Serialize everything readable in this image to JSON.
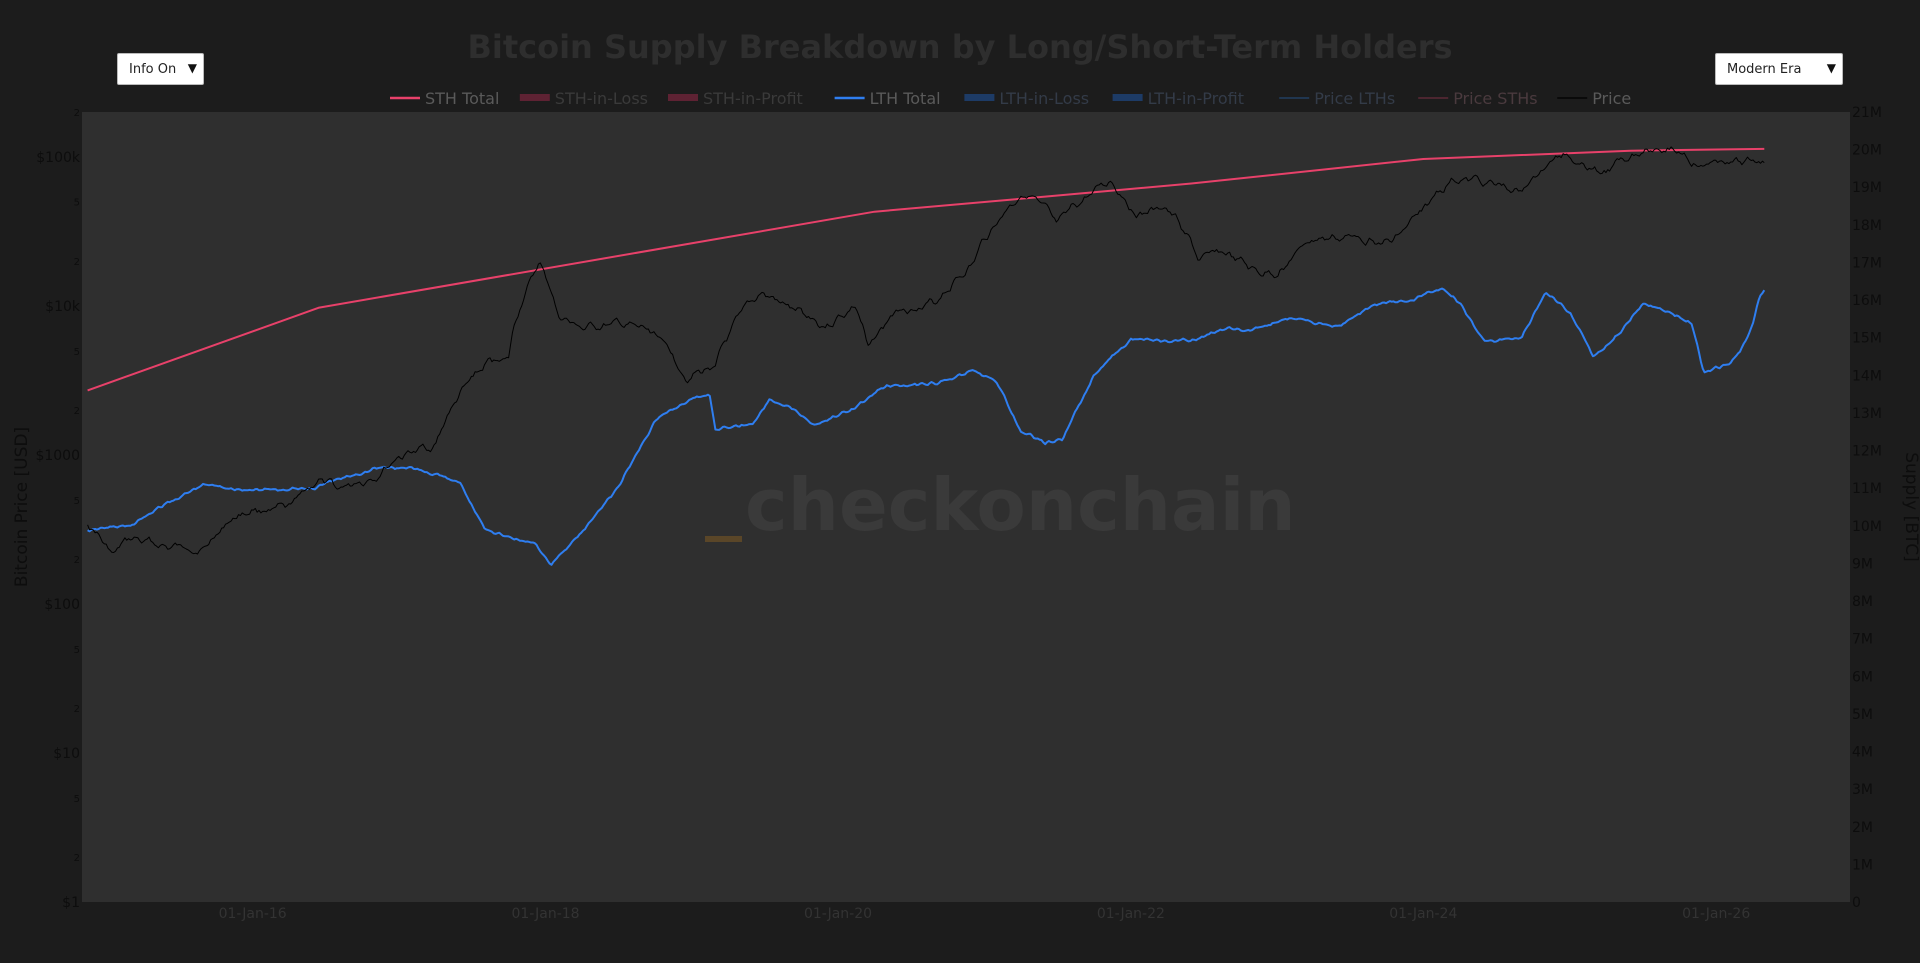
{
  "controls": {
    "info_toggle": {
      "label": "Info On"
    },
    "era_select": {
      "label": "Modern Era"
    }
  },
  "watermark": {
    "prefix": "_",
    "text": "checkonchain"
  },
  "chart_data": {
    "type": "line",
    "title": "Bitcoin Supply Breakdown by Long/Short-Term Holders",
    "legend": [
      "STH Total",
      "STH-in-Loss",
      "STH-in-Profit",
      "LTH Total",
      "LTH-in-Loss",
      "LTH-in-Profit",
      "Price LTHs",
      "Price STHs",
      "Price"
    ],
    "legend_placement": "top-center",
    "y_left": {
      "label": "Bitcoin Price [USD]",
      "scale": "log",
      "range": [
        1,
        200000
      ],
      "major_ticks": [
        {
          "v": 1,
          "t": "$1"
        },
        {
          "v": 10,
          "t": "$10"
        },
        {
          "v": 100,
          "t": "$100"
        },
        {
          "v": 1000,
          "t": "$1000"
        },
        {
          "v": 10000,
          "t": "$10k"
        },
        {
          "v": 100000,
          "t": "$100k"
        }
      ],
      "minor_ticks": [
        {
          "v": 2,
          "t": "2"
        },
        {
          "v": 5,
          "t": "5"
        },
        {
          "v": 20,
          "t": "2"
        },
        {
          "v": 50,
          "t": "5"
        },
        {
          "v": 200,
          "t": "2"
        },
        {
          "v": 500,
          "t": "5"
        },
        {
          "v": 2000,
          "t": "2"
        },
        {
          "v": 5000,
          "t": "5"
        },
        {
          "v": 20000,
          "t": "2"
        },
        {
          "v": 50000,
          "t": "5"
        },
        {
          "v": 200000,
          "t": "2"
        }
      ]
    },
    "y_right": {
      "label": "Supply [BTC]",
      "range": [
        0,
        21000000
      ],
      "ticks": [
        {
          "v": 0,
          "t": "0"
        },
        {
          "v": 1000000,
          "t": "1M"
        },
        {
          "v": 2000000,
          "t": "2M"
        },
        {
          "v": 3000000,
          "t": "3M"
        },
        {
          "v": 4000000,
          "t": "4M"
        },
        {
          "v": 5000000,
          "t": "5M"
        },
        {
          "v": 6000000,
          "t": "6M"
        },
        {
          "v": 7000000,
          "t": "7M"
        },
        {
          "v": 8000000,
          "t": "8M"
        },
        {
          "v": 9000000,
          "t": "9M"
        },
        {
          "v": 10000000,
          "t": "10M"
        },
        {
          "v": 11000000,
          "t": "11M"
        },
        {
          "v": 12000000,
          "t": "12M"
        },
        {
          "v": 13000000,
          "t": "13M"
        },
        {
          "v": 14000000,
          "t": "14M"
        },
        {
          "v": 15000000,
          "t": "15M"
        },
        {
          "v": 16000000,
          "t": "16M"
        },
        {
          "v": 17000000,
          "t": "17M"
        },
        {
          "v": 18000000,
          "t": "18M"
        },
        {
          "v": 19000000,
          "t": "19M"
        },
        {
          "v": 20000000,
          "t": "20M"
        },
        {
          "v": 21000000,
          "t": "21M"
        }
      ]
    },
    "x": {
      "range": [
        "2014-11-01",
        "2026-12-01"
      ],
      "ticks": [
        {
          "v": "2016-01-01",
          "t": "01-Jan-16"
        },
        {
          "v": "2018-01-01",
          "t": "01-Jan-18"
        },
        {
          "v": "2020-01-01",
          "t": "01-Jan-20"
        },
        {
          "v": "2022-01-01",
          "t": "01-Jan-22"
        },
        {
          "v": "2024-01-01",
          "t": "01-Jan-24"
        },
        {
          "v": "2026-01-01",
          "t": "01-Jan-26"
        }
      ]
    },
    "colors": {
      "sth_total": "#e8416a",
      "lth_total": "#2f7ef0",
      "price": "#000000",
      "sth_legend_dim": "#5e2233",
      "lth_legend_dim": "#1d3b66",
      "plot_bg": "#2f2f2f",
      "page_bg": "#1c1c1c",
      "title": "#2e2e2e",
      "axis_text": "#0d0d0d"
    },
    "series": [
      {
        "name": "STH Total",
        "axis": "right",
        "points": [
          [
            "2014-11-15",
            13.6
          ],
          [
            "2016-06-15",
            15.8
          ],
          [
            "2020-04-01",
            18.35
          ],
          [
            "2021-06-01",
            18.75
          ],
          [
            "2022-06-01",
            19.1
          ],
          [
            "2024-01-01",
            19.75
          ],
          [
            "2025-06-01",
            19.97
          ],
          [
            "2026-05-01",
            20.02
          ]
        ]
      },
      {
        "name": "LTH Total",
        "axis": "right",
        "points": [
          [
            "2014-11-15",
            9.9
          ],
          [
            "2015-01-01",
            9.95
          ],
          [
            "2015-03-01",
            10.0
          ],
          [
            "2015-06-01",
            10.6
          ],
          [
            "2015-09-01",
            11.1
          ],
          [
            "2016-01-01",
            10.95
          ],
          [
            "2016-06-01",
            11.0
          ],
          [
            "2016-11-01",
            11.55
          ],
          [
            "2017-02-01",
            11.55
          ],
          [
            "2017-06-01",
            11.15
          ],
          [
            "2017-08-01",
            10.0
          ],
          [
            "2017-10-01",
            9.7
          ],
          [
            "2017-12-01",
            9.55
          ],
          [
            "2018-01-15",
            9.0
          ],
          [
            "2018-04-01",
            9.8
          ],
          [
            "2018-07-01",
            11.0
          ],
          [
            "2018-10-01",
            12.8
          ],
          [
            "2019-01-01",
            13.4
          ],
          [
            "2019-02-15",
            13.5
          ],
          [
            "2019-03-01",
            12.6
          ],
          [
            "2019-06-01",
            12.7
          ],
          [
            "2019-07-15",
            13.4
          ],
          [
            "2019-09-01",
            13.2
          ],
          [
            "2019-11-01",
            12.7
          ],
          [
            "2020-02-01",
            13.1
          ],
          [
            "2020-05-01",
            13.7
          ],
          [
            "2020-09-01",
            13.8
          ],
          [
            "2020-12-01",
            14.1
          ],
          [
            "2021-02-01",
            13.8
          ],
          [
            "2021-04-01",
            12.5
          ],
          [
            "2021-06-01",
            12.2
          ],
          [
            "2021-07-15",
            12.3
          ],
          [
            "2021-10-01",
            14.0
          ],
          [
            "2022-01-01",
            15.0
          ],
          [
            "2022-04-01",
            14.9
          ],
          [
            "2022-06-01",
            14.9
          ],
          [
            "2022-09-01",
            15.3
          ],
          [
            "2022-11-01",
            15.2
          ],
          [
            "2023-02-01",
            15.5
          ],
          [
            "2023-06-01",
            15.3
          ],
          [
            "2023-09-01",
            15.9
          ],
          [
            "2023-12-01",
            16.0
          ],
          [
            "2024-02-15",
            16.3
          ],
          [
            "2024-04-01",
            15.9
          ],
          [
            "2024-06-01",
            14.9
          ],
          [
            "2024-09-01",
            15.0
          ],
          [
            "2024-11-01",
            16.2
          ],
          [
            "2025-01-01",
            15.7
          ],
          [
            "2025-03-01",
            14.5
          ],
          [
            "2025-05-01",
            15.1
          ],
          [
            "2025-07-01",
            15.9
          ],
          [
            "2025-09-01",
            15.7
          ],
          [
            "2025-11-01",
            15.4
          ],
          [
            "2025-12-01",
            14.1
          ],
          [
            "2026-02-01",
            14.3
          ],
          [
            "2026-03-01",
            14.6
          ],
          [
            "2026-04-01",
            15.3
          ],
          [
            "2026-04-15",
            16.0
          ],
          [
            "2026-05-01",
            16.3
          ]
        ]
      },
      {
        "name": "Price",
        "axis": "left",
        "points": [
          [
            "2014-11-15",
            350
          ],
          [
            "2015-01-15",
            210
          ],
          [
            "2015-03-01",
            270
          ],
          [
            "2015-06-01",
            240
          ],
          [
            "2015-09-01",
            235
          ],
          [
            "2015-11-15",
            380
          ],
          [
            "2016-01-01",
            430
          ],
          [
            "2016-04-01",
            430
          ],
          [
            "2016-06-15",
            680
          ],
          [
            "2016-08-01",
            580
          ],
          [
            "2016-11-01",
            720
          ],
          [
            "2017-01-01",
            990
          ],
          [
            "2017-04-01",
            1150
          ],
          [
            "2017-06-01",
            2500
          ],
          [
            "2017-08-15",
            4200
          ],
          [
            "2017-10-01",
            4500
          ],
          [
            "2017-12-17",
            19000
          ],
          [
            "2018-02-01",
            8500
          ],
          [
            "2018-04-01",
            7000
          ],
          [
            "2018-07-01",
            7500
          ],
          [
            "2018-10-01",
            6500
          ],
          [
            "2018-12-15",
            3400
          ],
          [
            "2019-03-01",
            3900
          ],
          [
            "2019-06-25",
            12000
          ],
          [
            "2019-09-01",
            9600
          ],
          [
            "2019-12-01",
            7300
          ],
          [
            "2020-02-15",
            10000
          ],
          [
            "2020-03-15",
            5000
          ],
          [
            "2020-06-01",
            9500
          ],
          [
            "2020-09-01",
            10500
          ],
          [
            "2020-12-01",
            19000
          ],
          [
            "2021-02-01",
            37000
          ],
          [
            "2021-04-15",
            60000
          ],
          [
            "2021-07-01",
            33000
          ],
          [
            "2021-11-10",
            68000
          ],
          [
            "2022-01-15",
            42000
          ],
          [
            "2022-04-01",
            45000
          ],
          [
            "2022-06-20",
            20000
          ],
          [
            "2022-08-15",
            23000
          ],
          [
            "2022-11-10",
            16500
          ],
          [
            "2023-01-01",
            16600
          ],
          [
            "2023-04-01",
            28000
          ],
          [
            "2023-08-01",
            29000
          ],
          [
            "2023-10-15",
            27000
          ],
          [
            "2024-01-01",
            43000
          ],
          [
            "2024-03-15",
            71000
          ],
          [
            "2024-06-01",
            68000
          ],
          [
            "2024-09-01",
            58000
          ],
          [
            "2024-12-15",
            105000
          ],
          [
            "2025-04-01",
            80000
          ],
          [
            "2025-06-01",
            105000
          ],
          [
            "2025-08-15",
            122000
          ],
          [
            "2025-10-01",
            112000
          ],
          [
            "2025-11-20",
            86000
          ],
          [
            "2026-01-15",
            95000
          ],
          [
            "2026-03-01",
            88000
          ],
          [
            "2026-04-15",
            95000
          ],
          [
            "2026-05-01",
            90000
          ]
        ]
      }
    ]
  }
}
